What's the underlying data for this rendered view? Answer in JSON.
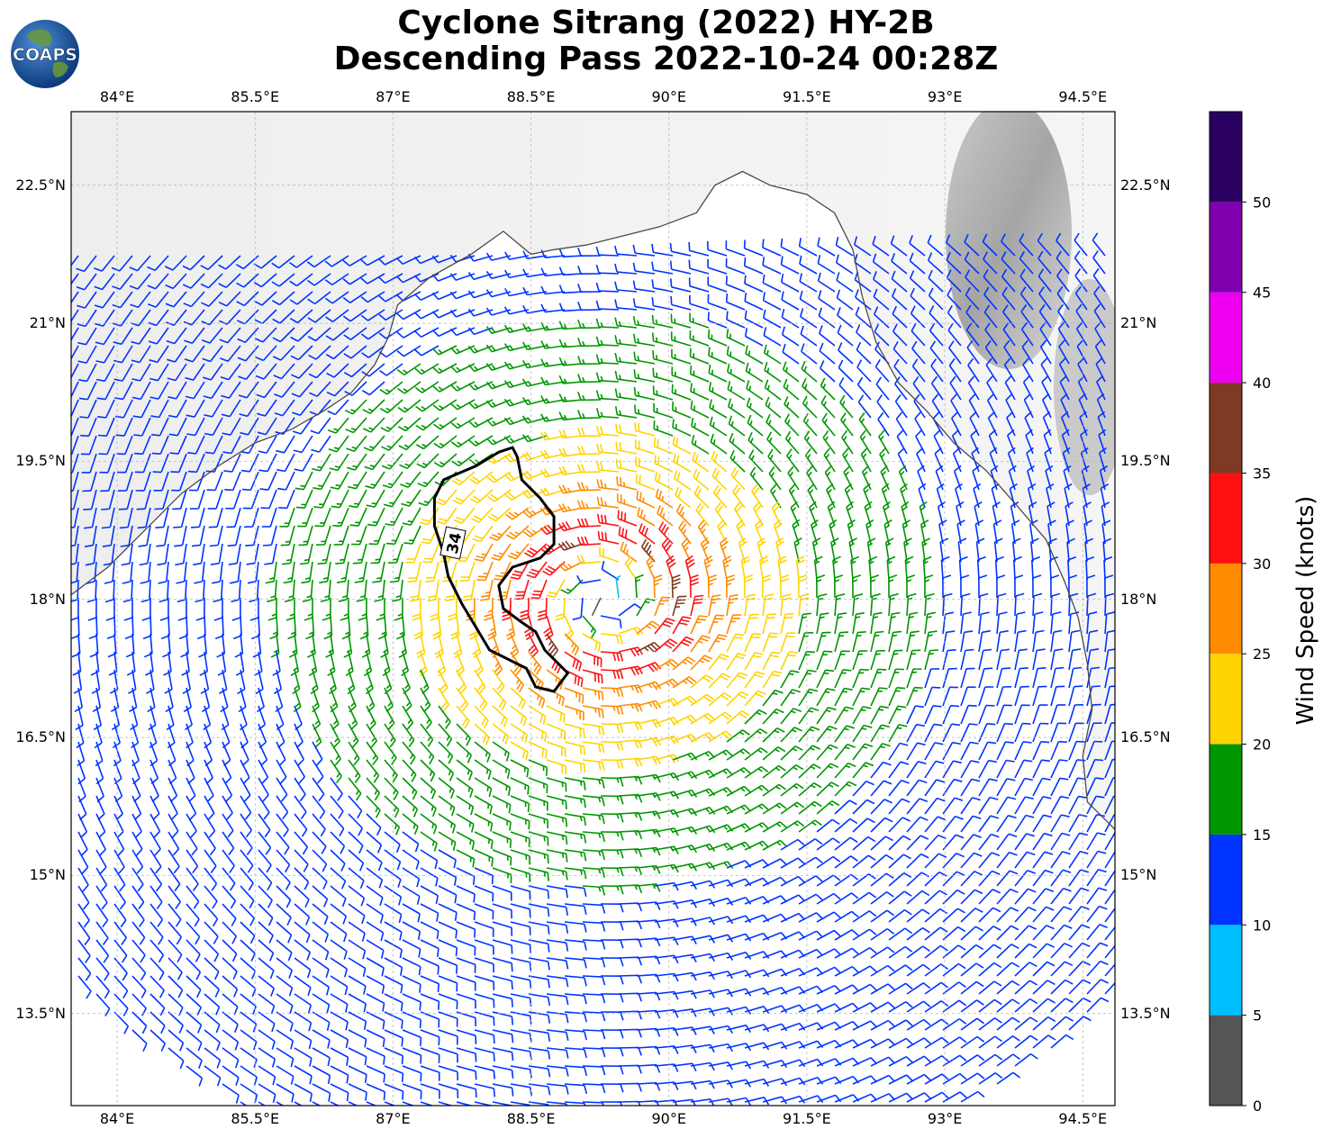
{
  "title": {
    "line1": "Cyclone Sitrang (2022) HY-2B",
    "line2": "Descending Pass 2022-10-24 00:28Z"
  },
  "logo": {
    "text": "COAPS"
  },
  "map": {
    "lon_range": [
      83.5,
      94.85
    ],
    "lat_range": [
      12.5,
      23.3
    ],
    "lon_ticks": [
      {
        "value": 84.0,
        "label": "84°E"
      },
      {
        "value": 85.5,
        "label": "85.5°E"
      },
      {
        "value": 87.0,
        "label": "87°E"
      },
      {
        "value": 88.5,
        "label": "88.5°E"
      },
      {
        "value": 90.0,
        "label": "90°E"
      },
      {
        "value": 91.5,
        "label": "91.5°E"
      },
      {
        "value": 93.0,
        "label": "93°E"
      },
      {
        "value": 94.5,
        "label": "94.5°E"
      }
    ],
    "lat_ticks": [
      {
        "value": 22.5,
        "label": "22.5°N"
      },
      {
        "value": 21.0,
        "label": "21°N"
      },
      {
        "value": 19.5,
        "label": "19.5°N"
      },
      {
        "value": 18.0,
        "label": "18°N"
      },
      {
        "value": 16.5,
        "label": "16.5°N"
      },
      {
        "value": 15.0,
        "label": "15°N"
      },
      {
        "value": 13.5,
        "label": "13.5°N"
      }
    ],
    "gridlines": true,
    "contour_label": "34",
    "cyclone_center": {
      "lon": 89.3,
      "lat": 18.0
    },
    "contour_34kt": [
      [
        88.15,
        19.6
      ],
      [
        88.3,
        19.65
      ],
      [
        88.35,
        19.55
      ],
      [
        88.4,
        19.3
      ],
      [
        88.6,
        19.1
      ],
      [
        88.75,
        18.9
      ],
      [
        88.75,
        18.6
      ],
      [
        88.6,
        18.45
      ],
      [
        88.3,
        18.35
      ],
      [
        88.15,
        18.15
      ],
      [
        88.2,
        17.9
      ],
      [
        88.4,
        17.75
      ],
      [
        88.55,
        17.65
      ],
      [
        88.65,
        17.45
      ],
      [
        88.9,
        17.2
      ],
      [
        88.75,
        17.0
      ],
      [
        88.55,
        17.05
      ],
      [
        88.45,
        17.25
      ],
      [
        88.05,
        17.45
      ],
      [
        87.9,
        17.7
      ],
      [
        87.75,
        17.95
      ],
      [
        87.6,
        18.25
      ],
      [
        87.55,
        18.5
      ],
      [
        87.45,
        18.8
      ],
      [
        87.45,
        19.1
      ],
      [
        87.55,
        19.3
      ],
      [
        87.9,
        19.45
      ],
      [
        88.15,
        19.6
      ]
    ],
    "coastline": [
      [
        83.5,
        18.05
      ],
      [
        83.9,
        18.35
      ],
      [
        84.3,
        18.75
      ],
      [
        84.7,
        19.15
      ],
      [
        85.1,
        19.45
      ],
      [
        85.5,
        19.7
      ],
      [
        85.9,
        19.85
      ],
      [
        86.25,
        20.05
      ],
      [
        86.55,
        20.25
      ],
      [
        86.8,
        20.55
      ],
      [
        86.95,
        20.85
      ],
      [
        87.05,
        21.2
      ],
      [
        87.4,
        21.5
      ],
      [
        87.85,
        21.75
      ],
      [
        88.2,
        22.0
      ],
      [
        88.5,
        21.75
      ],
      [
        88.75,
        21.8
      ],
      [
        89.1,
        21.85
      ],
      [
        89.5,
        21.95
      ],
      [
        89.9,
        22.05
      ],
      [
        90.3,
        22.2
      ],
      [
        90.5,
        22.5
      ],
      [
        90.8,
        22.65
      ],
      [
        91.1,
        22.5
      ],
      [
        91.5,
        22.4
      ],
      [
        91.8,
        22.2
      ],
      [
        92.0,
        21.8
      ],
      [
        92.1,
        21.3
      ],
      [
        92.25,
        20.8
      ],
      [
        92.5,
        20.35
      ],
      [
        92.8,
        20.05
      ],
      [
        93.1,
        19.7
      ],
      [
        93.45,
        19.4
      ],
      [
        93.8,
        19.0
      ],
      [
        94.1,
        18.65
      ],
      [
        94.3,
        18.2
      ],
      [
        94.45,
        17.8
      ],
      [
        94.55,
        17.3
      ],
      [
        94.6,
        16.8
      ],
      [
        94.5,
        16.3
      ],
      [
        94.55,
        15.8
      ],
      [
        94.75,
        15.6
      ],
      [
        94.85,
        15.5
      ]
    ],
    "wind_colormap": [
      {
        "min": 0,
        "max": 5,
        "color": "#555555"
      },
      {
        "min": 5,
        "max": 10,
        "color": "#00BFFF"
      },
      {
        "min": 10,
        "max": 15,
        "color": "#0033FF"
      },
      {
        "min": 15,
        "max": 20,
        "color": "#009600"
      },
      {
        "min": 20,
        "max": 25,
        "color": "#FFD400"
      },
      {
        "min": 25,
        "max": 30,
        "color": "#FF8C00"
      },
      {
        "min": 30,
        "max": 35,
        "color": "#FF1010"
      },
      {
        "min": 35,
        "max": 40,
        "color": "#7E3A22"
      },
      {
        "min": 40,
        "max": 45,
        "color": "#F000F0"
      },
      {
        "min": 45,
        "max": 50,
        "color": "#8000B0"
      },
      {
        "min": 50,
        "max": 55,
        "color": "#2A0060"
      }
    ]
  },
  "colorbar": {
    "title": "Wind Speed (knots)",
    "ticks": [
      "0",
      "5",
      "10",
      "15",
      "20",
      "25",
      "30",
      "35",
      "40",
      "45",
      "50"
    ]
  }
}
